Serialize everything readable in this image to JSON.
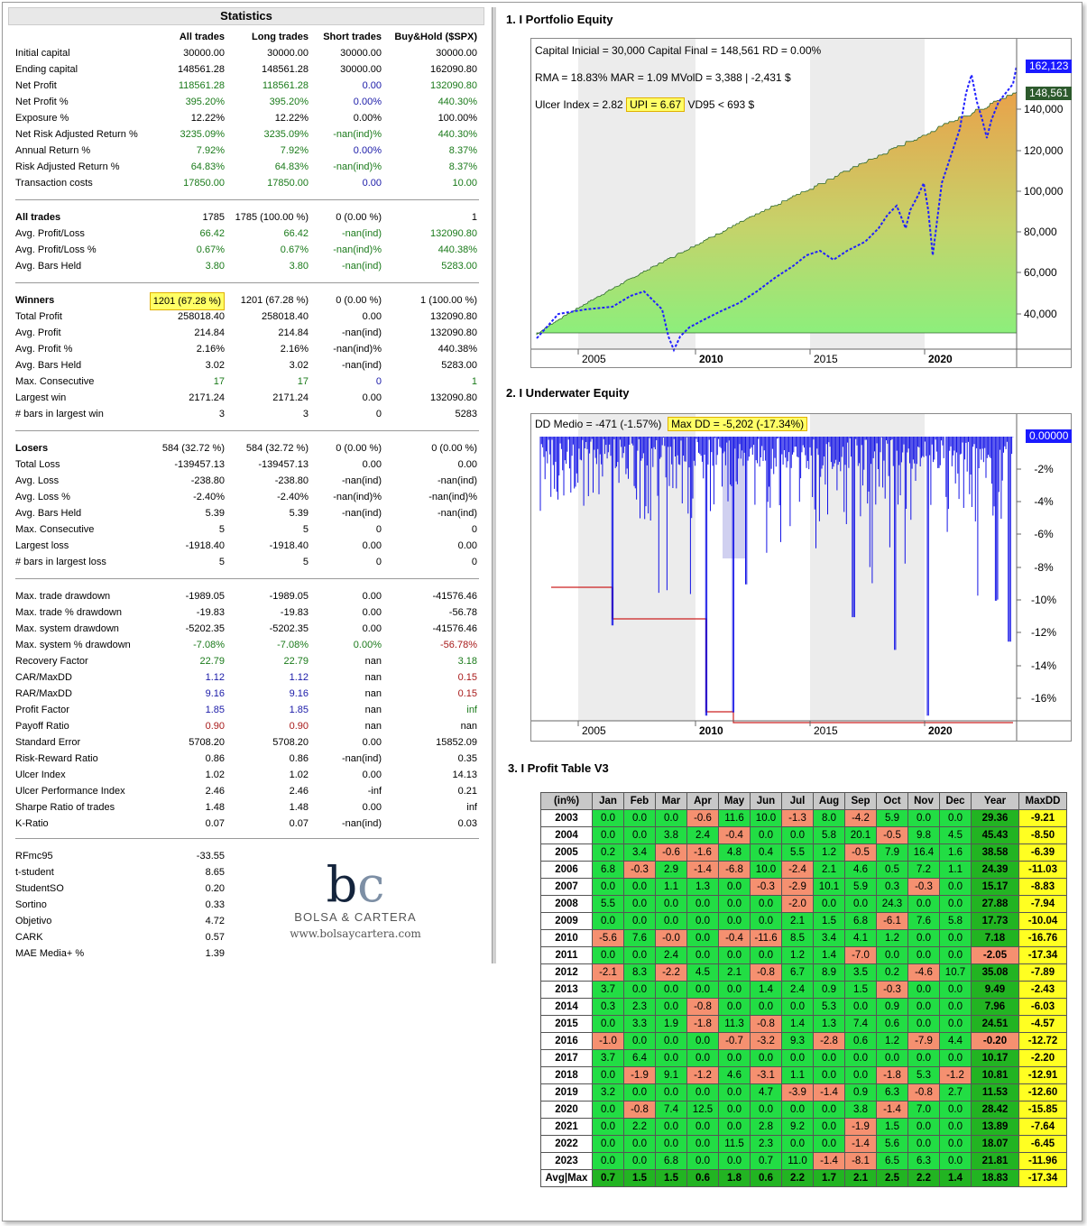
{
  "stats": {
    "title": "Statistics",
    "headers": [
      "All trades",
      "Long trades",
      "Short trades",
      "Buy&Hold ($SPX)"
    ],
    "groups": [
      [
        [
          "Initial capital",
          "30000.00",
          "30000.00",
          "30000.00",
          "30000.00",
          ""
        ],
        [
          "Ending capital",
          "148561.28",
          "148561.28",
          "30000.00",
          "162090.80",
          ""
        ],
        [
          "Net Profit",
          "118561.28",
          "118561.28",
          "0.00",
          "132090.80",
          "g"
        ],
        [
          "Net Profit %",
          "395.20%",
          "395.20%",
          "0.00%",
          "440.30%",
          "g"
        ],
        [
          "Exposure %",
          "12.22%",
          "12.22%",
          "0.00%",
          "100.00%",
          ""
        ],
        [
          "Net Risk Adjusted Return %",
          "3235.09%",
          "3235.09%",
          "-nan(ind)%",
          "440.30%",
          "g"
        ],
        [
          "Annual Return %",
          "7.92%",
          "7.92%",
          "0.00%",
          "8.37%",
          "g"
        ],
        [
          "Risk Adjusted Return %",
          "64.83%",
          "64.83%",
          "-nan(ind)%",
          "8.37%",
          "g"
        ],
        [
          "Transaction costs",
          "17850.00",
          "17850.00",
          "0.00",
          "10.00",
          "g"
        ]
      ],
      [
        [
          "All trades",
          "1785",
          "1785 (100.00 %)",
          "0 (0.00 %)",
          "1",
          "b"
        ],
        [
          "Avg. Profit/Loss",
          "66.42",
          "66.42",
          "-nan(ind)",
          "132090.80",
          "g"
        ],
        [
          "Avg. Profit/Loss %",
          "0.67%",
          "0.67%",
          "-nan(ind)%",
          "440.38%",
          "g"
        ],
        [
          "Avg. Bars Held",
          "3.80",
          "3.80",
          "-nan(ind)",
          "5283.00",
          "g"
        ]
      ],
      [
        [
          "Winners",
          "1201 (67.28 %)",
          "1201 (67.28 %)",
          "0 (0.00 %)",
          "1 (100.00 %)",
          "b"
        ],
        [
          "Total Profit",
          "258018.40",
          "258018.40",
          "0.00",
          "132090.80",
          ""
        ],
        [
          "Avg. Profit",
          "214.84",
          "214.84",
          "-nan(ind)",
          "132090.80",
          ""
        ],
        [
          "Avg. Profit %",
          "2.16%",
          "2.16%",
          "-nan(ind)%",
          "440.38%",
          ""
        ],
        [
          "Avg. Bars Held",
          "3.02",
          "3.02",
          "-nan(ind)",
          "5283.00",
          ""
        ],
        [
          "Max. Consecutive",
          "17",
          "17",
          "0",
          "1",
          "g"
        ],
        [
          "Largest win",
          "2171.24",
          "2171.24",
          "0.00",
          "132090.80",
          ""
        ],
        [
          "# bars in largest win",
          "3",
          "3",
          "0",
          "5283",
          ""
        ]
      ],
      [
        [
          "Losers",
          "584 (32.72 %)",
          "584 (32.72 %)",
          "0 (0.00 %)",
          "0 (0.00 %)",
          "b"
        ],
        [
          "Total Loss",
          "-139457.13",
          "-139457.13",
          "0.00",
          "0.00",
          ""
        ],
        [
          "Avg. Loss",
          "-238.80",
          "-238.80",
          "-nan(ind)",
          "-nan(ind)",
          ""
        ],
        [
          "Avg. Loss %",
          "-2.40%",
          "-2.40%",
          "-nan(ind)%",
          "-nan(ind)%",
          ""
        ],
        [
          "Avg. Bars Held",
          "5.39",
          "5.39",
          "-nan(ind)",
          "-nan(ind)",
          ""
        ],
        [
          "Max. Consecutive",
          "5",
          "5",
          "0",
          "0",
          ""
        ],
        [
          "Largest loss",
          "-1918.40",
          "-1918.40",
          "0.00",
          "0.00",
          ""
        ],
        [
          "# bars in largest loss",
          "5",
          "5",
          "0",
          "0",
          ""
        ]
      ],
      [
        [
          "Max. trade drawdown",
          "-1989.05",
          "-1989.05",
          "0.00",
          "-41576.46",
          ""
        ],
        [
          "Max. trade % drawdown",
          "-19.83",
          "-19.83",
          "0.00",
          "-56.78",
          ""
        ],
        [
          "Max. system drawdown",
          "-5202.35",
          "-5202.35",
          "0.00",
          "-41576.46",
          ""
        ],
        [
          "Max. system % drawdown",
          "-7.08%",
          "-7.08%",
          "0.00%",
          "-56.78%",
          "g"
        ],
        [
          "Recovery Factor",
          "22.79",
          "22.79",
          "nan",
          "3.18",
          "g"
        ],
        [
          "CAR/MaxDD",
          "1.12",
          "1.12",
          "nan",
          "0.15",
          "u"
        ],
        [
          "RAR/MaxDD",
          "9.16",
          "9.16",
          "nan",
          "0.15",
          "u"
        ],
        [
          "Profit Factor",
          "1.85",
          "1.85",
          "nan",
          "inf",
          "u"
        ],
        [
          "Payoff Ratio",
          "0.90",
          "0.90",
          "nan",
          "nan",
          "r"
        ],
        [
          "Standard Error",
          "5708.20",
          "5708.20",
          "0.00",
          "15852.09",
          ""
        ],
        [
          "Risk-Reward Ratio",
          "0.86",
          "0.86",
          "-nan(ind)",
          "0.35",
          ""
        ],
        [
          "Ulcer Index",
          "1.02",
          "1.02",
          "0.00",
          "14.13",
          ""
        ],
        [
          "Ulcer Performance Index",
          "2.46",
          "2.46",
          "-inf",
          "0.21",
          ""
        ],
        [
          "Sharpe Ratio of trades",
          "1.48",
          "1.48",
          "0.00",
          "inf",
          ""
        ],
        [
          "K-Ratio",
          "0.07",
          "0.07",
          "-nan(ind)",
          "0.03",
          ""
        ]
      ],
      [
        [
          "RFmc95",
          "-33.55",
          "",
          "",
          "",
          ""
        ],
        [
          "t-student",
          "8.65",
          "",
          "",
          "",
          ""
        ],
        [
          "StudentSO",
          "0.20",
          "",
          "",
          "",
          ""
        ],
        [
          "Sortino",
          "0.33",
          "",
          "",
          "",
          ""
        ],
        [
          "Objetivo",
          "4.72",
          "",
          "",
          "",
          ""
        ],
        [
          "CARK",
          "0.57",
          "",
          "",
          "",
          ""
        ],
        [
          "MAE Media+ %",
          "1.39",
          "",
          "",
          "",
          ""
        ]
      ]
    ]
  },
  "logo": {
    "mark_b": "b",
    "mark_c": "c",
    "brand": "BOLSA & CARTERA",
    "url": "www.bolsaycartera.com"
  },
  "equity": {
    "title": "1. I Portfolio Equity",
    "line1": "Capital Inicial = 30,000   Capital Final = 148,561   RD = 0.00%",
    "line2": "RMA = 18.83%   MAR = 1.09   MVolD = 3,388 | -2,431 $",
    "line3a": "Ulcer Index = 2.82",
    "line3b": "UPI = 6.67",
    "line3c": "VD95 < 693 $",
    "tag_bh": "162,123",
    "tag_eq": "148,561",
    "y_ticks": [
      "140,000",
      "120,000",
      "100,000",
      "80,000",
      "60,000",
      "40,000"
    ],
    "x_ticks": [
      "2005",
      "2010",
      "2015",
      "2020"
    ]
  },
  "underwater": {
    "title": "2. I Underwater Equity",
    "dd_medio": "DD Medio = -471 (-1.57%)",
    "max_dd": "Max DD = -5,202 (-17.34%)",
    "tag": "0.00000",
    "y_ticks": [
      "-2%",
      "-4%",
      "-6%",
      "-8%",
      "-10%",
      "-12%",
      "-14%",
      "-16%"
    ],
    "x_ticks": [
      "2005",
      "2010",
      "2015",
      "2020"
    ]
  },
  "profit_table": {
    "title": "3. I Profit Table V3",
    "headers": [
      "(in%)",
      "Jan",
      "Feb",
      "Mar",
      "Apr",
      "May",
      "Jun",
      "Jul",
      "Aug",
      "Sep",
      "Oct",
      "Nov",
      "Dec",
      "Year",
      "MaxDD"
    ],
    "rows": [
      [
        "2003",
        "0.0",
        "0.0",
        "0.0",
        "-0.6",
        "11.6",
        "10.0",
        "-1.3",
        "8.0",
        "-4.2",
        "5.9",
        "0.0",
        "0.0",
        "29.36",
        "-9.21"
      ],
      [
        "2004",
        "0.0",
        "0.0",
        "3.8",
        "2.4",
        "-0.4",
        "0.0",
        "0.0",
        "5.8",
        "20.1",
        "-0.5",
        "9.8",
        "4.5",
        "45.43",
        "-8.50"
      ],
      [
        "2005",
        "0.2",
        "3.4",
        "-0.6",
        "-1.6",
        "4.8",
        "0.4",
        "5.5",
        "1.2",
        "-0.5",
        "7.9",
        "16.4",
        "1.6",
        "38.58",
        "-6.39"
      ],
      [
        "2006",
        "6.8",
        "-0.3",
        "2.9",
        "-1.4",
        "-6.8",
        "10.0",
        "-2.4",
        "2.1",
        "4.6",
        "0.5",
        "7.2",
        "1.1",
        "24.39",
        "-11.03"
      ],
      [
        "2007",
        "0.0",
        "0.0",
        "1.1",
        "1.3",
        "0.0",
        "-0.3",
        "-2.9",
        "10.1",
        "5.9",
        "0.3",
        "-0.3",
        "0.0",
        "15.17",
        "-8.83"
      ],
      [
        "2008",
        "5.5",
        "0.0",
        "0.0",
        "0.0",
        "0.0",
        "0.0",
        "-2.0",
        "0.0",
        "0.0",
        "24.3",
        "0.0",
        "0.0",
        "27.88",
        "-7.94"
      ],
      [
        "2009",
        "0.0",
        "0.0",
        "0.0",
        "0.0",
        "0.0",
        "0.0",
        "2.1",
        "1.5",
        "6.8",
        "-6.1",
        "7.6",
        "5.8",
        "17.73",
        "-10.04"
      ],
      [
        "2010",
        "-5.6",
        "7.6",
        "-0.0",
        "0.0",
        "-0.4",
        "-11.6",
        "8.5",
        "3.4",
        "4.1",
        "1.2",
        "0.0",
        "0.0",
        "7.18",
        "-16.76"
      ],
      [
        "2011",
        "0.0",
        "0.0",
        "2.4",
        "0.0",
        "0.0",
        "0.0",
        "1.2",
        "1.4",
        "-7.0",
        "0.0",
        "0.0",
        "0.0",
        "-2.05",
        "-17.34"
      ],
      [
        "2012",
        "-2.1",
        "8.3",
        "-2.2",
        "4.5",
        "2.1",
        "-0.8",
        "6.7",
        "8.9",
        "3.5",
        "0.2",
        "-4.6",
        "10.7",
        "35.08",
        "-7.89"
      ],
      [
        "2013",
        "3.7",
        "0.0",
        "0.0",
        "0.0",
        "0.0",
        "1.4",
        "2.4",
        "0.9",
        "1.5",
        "-0.3",
        "0.0",
        "0.0",
        "9.49",
        "-2.43"
      ],
      [
        "2014",
        "0.3",
        "2.3",
        "0.0",
        "-0.8",
        "0.0",
        "0.0",
        "0.0",
        "5.3",
        "0.0",
        "0.9",
        "0.0",
        "0.0",
        "7.96",
        "-6.03"
      ],
      [
        "2015",
        "0.0",
        "3.3",
        "1.9",
        "-1.8",
        "11.3",
        "-0.8",
        "1.4",
        "1.3",
        "7.4",
        "0.6",
        "0.0",
        "0.0",
        "24.51",
        "-4.57"
      ],
      [
        "2016",
        "-1.0",
        "0.0",
        "0.0",
        "0.0",
        "-0.7",
        "-3.2",
        "9.3",
        "-2.8",
        "0.6",
        "1.2",
        "-7.9",
        "4.4",
        "-0.20",
        "-12.72"
      ],
      [
        "2017",
        "3.7",
        "6.4",
        "0.0",
        "0.0",
        "0.0",
        "0.0",
        "0.0",
        "0.0",
        "0.0",
        "0.0",
        "0.0",
        "0.0",
        "10.17",
        "-2.20"
      ],
      [
        "2018",
        "0.0",
        "-1.9",
        "9.1",
        "-1.2",
        "4.6",
        "-3.1",
        "1.1",
        "0.0",
        "0.0",
        "-1.8",
        "5.3",
        "-1.2",
        "10.81",
        "-12.91"
      ],
      [
        "2019",
        "3.2",
        "0.0",
        "0.0",
        "0.0",
        "0.0",
        "4.7",
        "-3.9",
        "-1.4",
        "0.9",
        "6.3",
        "-0.8",
        "2.7",
        "11.53",
        "-12.60"
      ],
      [
        "2020",
        "0.0",
        "-0.8",
        "7.4",
        "12.5",
        "0.0",
        "0.0",
        "0.0",
        "0.0",
        "3.8",
        "-1.4",
        "7.0",
        "0.0",
        "28.42",
        "-15.85"
      ],
      [
        "2021",
        "0.0",
        "2.2",
        "0.0",
        "0.0",
        "0.0",
        "2.8",
        "9.2",
        "0.0",
        "-1.9",
        "1.5",
        "0.0",
        "0.0",
        "13.89",
        "-7.64"
      ],
      [
        "2022",
        "0.0",
        "0.0",
        "0.0",
        "0.0",
        "11.5",
        "2.3",
        "0.0",
        "0.0",
        "-1.4",
        "5.6",
        "0.0",
        "0.0",
        "18.07",
        "-6.45"
      ],
      [
        "2023",
        "0.0",
        "0.0",
        "6.8",
        "0.0",
        "0.0",
        "0.7",
        "11.0",
        "-1.4",
        "-8.1",
        "6.5",
        "6.3",
        "0.0",
        "21.81",
        "-11.96"
      ],
      [
        "Avg|Max",
        "0.7",
        "1.5",
        "1.5",
        "0.6",
        "1.8",
        "0.6",
        "2.2",
        "1.7",
        "2.1",
        "2.5",
        "2.2",
        "1.4",
        "18.83",
        "-17.34"
      ]
    ]
  }
}
